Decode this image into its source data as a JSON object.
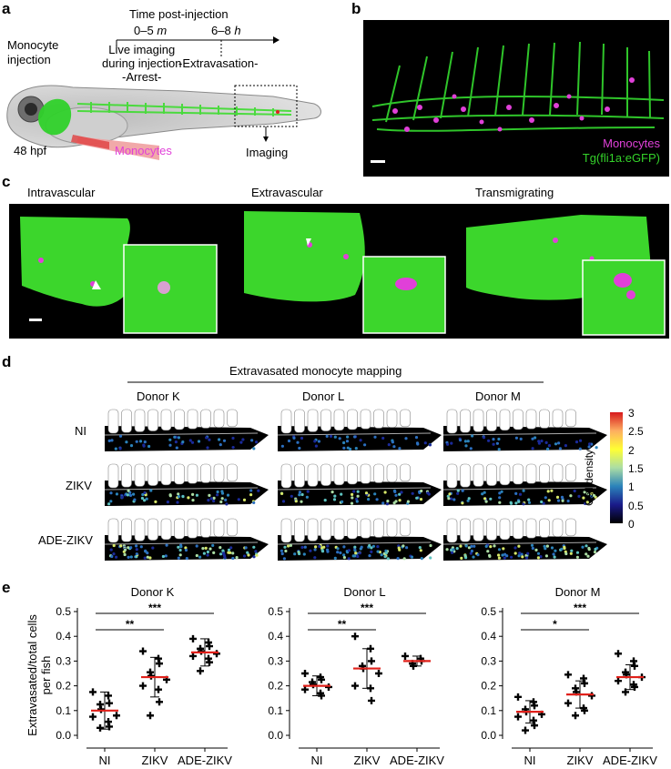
{
  "panels": {
    "a": {
      "letter": "a",
      "monocyte_injection": [
        "Monocyte",
        "injection"
      ],
      "timeline_title": "Time post-injection",
      "t1": "0–5",
      "t1_unit": "m",
      "t2": "6–8",
      "t2_unit": "h",
      "live_imaging": [
        "Live imaging",
        "during injection"
      ],
      "arrest": "-Arrest-",
      "extravasation": "-Extravasation-",
      "hpf": "48 hpf",
      "monocytes_label": "Monocytes",
      "imaging": "Imaging"
    },
    "b": {
      "letter": "b",
      "legend_monocytes": "Monocytes",
      "legend_vessels": "Tg(fli1a:eGFP)",
      "colors": {
        "monocytes": "#e040d8",
        "vessels": "#34d22a"
      }
    },
    "c": {
      "letter": "c",
      "titles": [
        "Intravascular",
        "Extravascular",
        "Transmigrating"
      ]
    },
    "d": {
      "letter": "d",
      "header": "Extravasated monocyte mapping",
      "donors": [
        "Donor K",
        "Donor L",
        "Donor M"
      ],
      "conditions": [
        "NI",
        "ZIKV",
        "ADE-ZIKV"
      ],
      "colorbar_label": "Cell density",
      "colorbar_ticks": [
        "3",
        "2.5",
        "2",
        "1.5",
        "1",
        "0.5",
        "0"
      ]
    },
    "e": {
      "letter": "e",
      "ylabel": [
        "Extravasated/total cells",
        "per fish"
      ]
    }
  },
  "chart_data": [
    {
      "type": "scatter",
      "title": "Donor K",
      "categories": [
        "NI",
        "ZIKV",
        "ADE-ZIKV"
      ],
      "yticks": [
        "0.0",
        "0.1",
        "0.2",
        "0.3",
        "0.4",
        "0.5"
      ],
      "ylim": [
        0,
        0.5
      ],
      "points": [
        [
          0.175,
          0.16,
          0.13,
          0.125,
          0.105,
          0.08,
          0.075,
          0.055,
          0.035,
          0.03
        ],
        [
          0.34,
          0.31,
          0.29,
          0.255,
          0.24,
          0.225,
          0.2,
          0.185,
          0.135,
          0.08
        ],
        [
          0.39,
          0.375,
          0.36,
          0.35,
          0.34,
          0.33,
          0.32,
          0.31,
          0.295,
          0.26
        ]
      ],
      "means": [
        0.1,
        0.235,
        0.335
      ],
      "sd": [
        0.075,
        0.08,
        0.055
      ],
      "significance": [
        {
          "from": 0,
          "to": 1,
          "label": "**"
        },
        {
          "from": 0,
          "to": 2,
          "label": "***"
        }
      ]
    },
    {
      "type": "scatter",
      "title": "Donor L",
      "categories": [
        "NI",
        "ZIKV",
        "ADE-ZIKV"
      ],
      "yticks": [
        "0.0",
        "0.1",
        "0.2",
        "0.3",
        "0.4",
        "0.5"
      ],
      "ylim": [
        0,
        0.5
      ],
      "points": [
        [
          0.25,
          0.235,
          0.225,
          0.215,
          0.205,
          0.195,
          0.185,
          0.17,
          0.16
        ],
        [
          0.4,
          0.35,
          0.3,
          0.28,
          0.27,
          0.25,
          0.2,
          0.19,
          0.14
        ],
        [
          0.32,
          0.31,
          0.3,
          0.29,
          0.28
        ]
      ],
      "means": [
        0.2,
        0.27,
        0.3
      ],
      "sd": [
        0.04,
        0.08,
        0.02
      ],
      "significance": [
        {
          "from": 0,
          "to": 1,
          "label": "**"
        },
        {
          "from": 0,
          "to": 2,
          "label": "***"
        }
      ]
    },
    {
      "type": "scatter",
      "title": "Donor M",
      "categories": [
        "NI",
        "ZIKV",
        "ADE-ZIKV"
      ],
      "yticks": [
        "0.0",
        "0.1",
        "0.2",
        "0.3",
        "0.4",
        "0.5"
      ],
      "ylim": [
        0,
        0.5
      ],
      "points": [
        [
          0.155,
          0.135,
          0.12,
          0.105,
          0.095,
          0.085,
          0.075,
          0.06,
          0.04,
          0.02
        ],
        [
          0.245,
          0.23,
          0.21,
          0.19,
          0.175,
          0.16,
          0.13,
          0.11,
          0.1,
          0.08
        ],
        [
          0.33,
          0.3,
          0.28,
          0.255,
          0.245,
          0.235,
          0.22,
          0.205,
          0.195,
          0.175
        ]
      ],
      "means": [
        0.095,
        0.165,
        0.235
      ],
      "sd": [
        0.045,
        0.055,
        0.05
      ],
      "significance": [
        {
          "from": 0,
          "to": 1,
          "label": "*"
        },
        {
          "from": 0,
          "to": 2,
          "label": "***"
        }
      ]
    }
  ]
}
